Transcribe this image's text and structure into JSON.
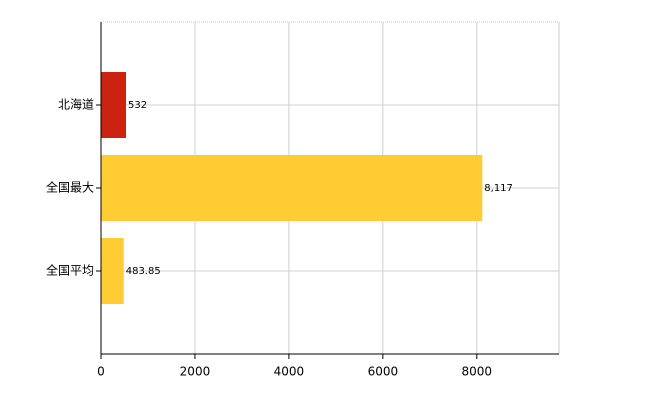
{
  "chart_data": {
    "type": "bar",
    "orientation": "horizontal",
    "categories": [
      "北海道",
      "全国最大",
      "全国平均"
    ],
    "values": [
      532,
      8117,
      483.85
    ],
    "value_labels": [
      "532",
      "8,117",
      "483.85"
    ],
    "colors": [
      "#cc2211",
      "#ffcc33",
      "#ffcc33"
    ],
    "xlim": [
      0,
      9750
    ],
    "xticks": [
      0,
      2000,
      4000,
      6000,
      8000
    ],
    "grid": true
  }
}
